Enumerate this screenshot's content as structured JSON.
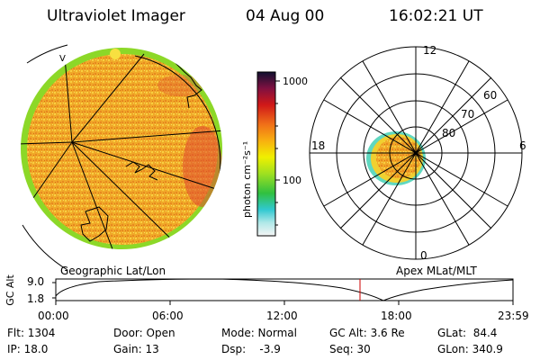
{
  "header": {
    "instrument": "Ultraviolet Imager",
    "date": "04 Aug 00",
    "time": "16:02:21 UT"
  },
  "colorbar": {
    "unit_label": "photon cm⁻²s⁻¹",
    "ticks": [
      "1000",
      "100"
    ],
    "scale": "log"
  },
  "left_panel": {
    "caption": "Geographic Lat/Lon",
    "grid_label": "V"
  },
  "right_panel": {
    "caption": "Apex MLat/MLT",
    "mlt_labels": {
      "top": "12",
      "left": "18",
      "right": "6",
      "bottom": "0"
    },
    "lat_labels": [
      "60",
      "70",
      "80"
    ]
  },
  "altitude_plot": {
    "axis_label": "GC Alt",
    "y_ticks": [
      "9.0",
      "1.8"
    ],
    "x_ticks": [
      "00:00",
      "06:00",
      "12:00",
      "18:00",
      "23:59"
    ],
    "marker_color": "#cc0000"
  },
  "footer": {
    "flt": "Flt: 1304",
    "ip": "IP: 18.0",
    "door": "Door: Open",
    "gain": "Gain: 13",
    "mode": "Mode: Normal",
    "dsp": "Dsp:    -3.9",
    "gc_alt": "GC Alt: 3.6 Re",
    "seq": "Seq: 30",
    "glat": "GLat:  84.4",
    "glon": "GLon: 340.9"
  }
}
